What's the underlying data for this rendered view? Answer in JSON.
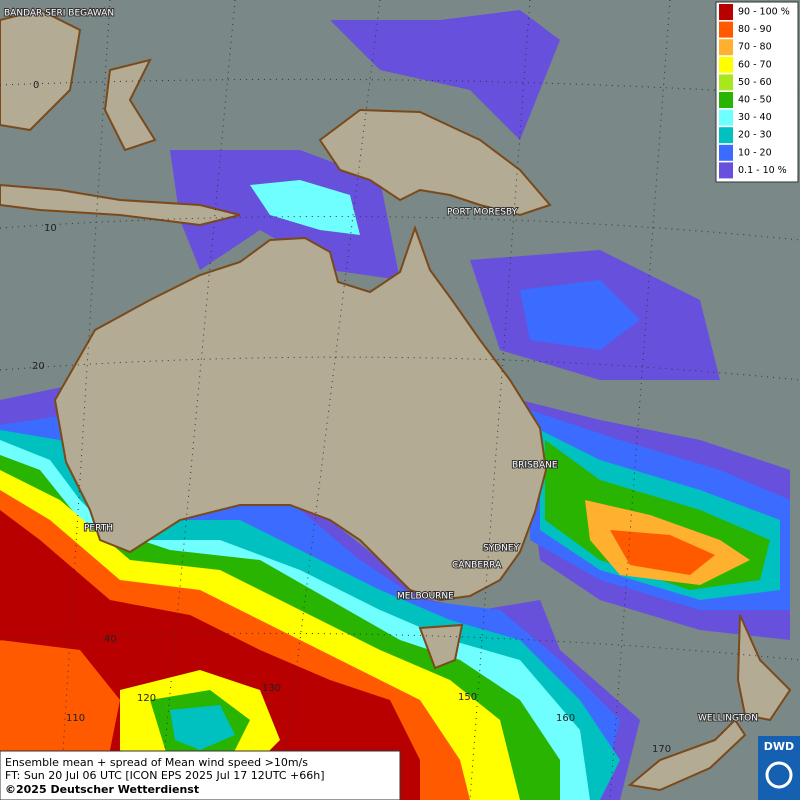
{
  "legend": [
    {
      "label": "90 - 100 %",
      "color": "#b80000"
    },
    {
      "label": "80 - 90",
      "color": "#ff5a00"
    },
    {
      "label": "70 - 80",
      "color": "#ffb02e"
    },
    {
      "label": "60 - 70",
      "color": "#ffff00"
    },
    {
      "label": "50 - 60",
      "color": "#a8e61e"
    },
    {
      "label": "40 - 50",
      "color": "#28b400"
    },
    {
      "label": "30 - 40",
      "color": "#70ffff"
    },
    {
      "label": "20 - 30",
      "color": "#00c0c0"
    },
    {
      "label": "10 - 20",
      "color": "#3c6cff"
    },
    {
      "label": "0.1 - 10 %",
      "color": "#6650dc"
    }
  ],
  "places": [
    "BANDAR SERI BEGAWAN",
    "PORT MORESBY",
    "BRISBANE",
    "PERTH",
    "SYDNEY",
    "CANBERRA",
    "MELBOURNE",
    "WELLINGTON"
  ],
  "grid_labels": [
    "0",
    "10",
    "20",
    "40",
    "110",
    "120",
    "130",
    "150",
    "160",
    "170"
  ],
  "caption": [
    "Ensemble mean + spread of Mean wind speed >10m/s",
    "FT: Sun 20 Jul 06 UTC [ICON EPS 2025 Jul 17 12UTC +66h]",
    "©2025 Deutscher Wetterdienst"
  ],
  "logo": "DWD"
}
